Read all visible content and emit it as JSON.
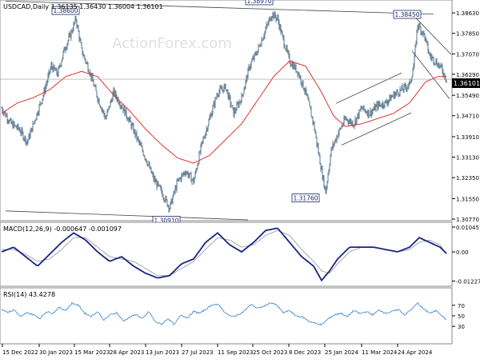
{
  "chart_data": [
    {
      "type": "candlestick",
      "symbol": "USDCAD",
      "timeframe": "Daily",
      "ohlc": [
        "1.36135",
        "1.36430",
        "1.36004",
        "1.36101"
      ],
      "ylim": [
        1.3077,
        1.3906
      ],
      "y_ticks": [
        1.3863,
        1.3785,
        1.3707,
        1.3629,
        1.3549,
        1.3471,
        1.3391,
        1.3313,
        1.3235,
        1.3155,
        1.3077
      ],
      "x_ticks": [
        "15 Dec 2022",
        "30 Jan 2023",
        "15 Mar 2023",
        "28 Apr 2023",
        "13 Jun 2023",
        "27 Jul 2023",
        "11 Sep 2023",
        "25 Oct 2023",
        "8 Dec 2023",
        "25 Jan 2024",
        "11 Mar 2024",
        "24 Apr 2024"
      ],
      "last_price": "1.36101",
      "horizontal_line": 1.36101,
      "annotations": [
        {
          "label": "1.38600",
          "price": 1.386
        },
        {
          "label": "1.38970",
          "price": 1.3897
        },
        {
          "label": "1.38450",
          "price": 1.3845
        },
        {
          "label": "1.31760",
          "price": 1.3176
        },
        {
          "label": "1.30910",
          "price": 1.3091
        }
      ],
      "close_path": [
        [
          0,
          1.35
        ],
        [
          12,
          1.344
        ],
        [
          22,
          1.342
        ],
        [
          32,
          1.337
        ],
        [
          42,
          1.346
        ],
        [
          52,
          1.355
        ],
        [
          62,
          1.366
        ],
        [
          70,
          1.363
        ],
        [
          78,
          1.372
        ],
        [
          86,
          1.378
        ],
        [
          93,
          1.384
        ],
        [
          100,
          1.372
        ],
        [
          110,
          1.364
        ],
        [
          120,
          1.354
        ],
        [
          130,
          1.346
        ],
        [
          140,
          1.356
        ],
        [
          150,
          1.351
        ],
        [
          160,
          1.345
        ],
        [
          170,
          1.338
        ],
        [
          180,
          1.331
        ],
        [
          190,
          1.323
        ],
        [
          200,
          1.318
        ],
        [
          210,
          1.312
        ],
        [
          220,
          1.322
        ],
        [
          230,
          1.326
        ],
        [
          240,
          1.322
        ],
        [
          250,
          1.336
        ],
        [
          260,
          1.346
        ],
        [
          270,
          1.356
        ],
        [
          280,
          1.358
        ],
        [
          290,
          1.348
        ],
        [
          300,
          1.354
        ],
        [
          310,
          1.366
        ],
        [
          320,
          1.372
        ],
        [
          330,
          1.38
        ],
        [
          338,
          1.386
        ],
        [
          345,
          1.384
        ],
        [
          352,
          1.376
        ],
        [
          360,
          1.368
        ],
        [
          370,
          1.364
        ],
        [
          380,
          1.356
        ],
        [
          390,
          1.344
        ],
        [
          400,
          1.326
        ],
        [
          405,
          1.318
        ],
        [
          412,
          1.334
        ],
        [
          420,
          1.34
        ],
        [
          430,
          1.346
        ],
        [
          440,
          1.344
        ],
        [
          450,
          1.35
        ],
        [
          460,
          1.348
        ],
        [
          470,
          1.351
        ],
        [
          480,
          1.352
        ],
        [
          490,
          1.355
        ],
        [
          500,
          1.357
        ],
        [
          510,
          1.359
        ],
        [
          515,
          1.366
        ],
        [
          520,
          1.382
        ],
        [
          528,
          1.378
        ],
        [
          535,
          1.37
        ],
        [
          542,
          1.368
        ],
        [
          550,
          1.365
        ],
        [
          556,
          1.361
        ]
      ],
      "series": [
        {
          "name": "MA",
          "values": [
            [
              0,
              1.348
            ],
            [
              20,
              1.352
            ],
            [
              40,
              1.354
            ],
            [
              60,
              1.357
            ],
            [
              80,
              1.362
            ],
            [
              100,
              1.364
            ],
            [
              120,
              1.362
            ],
            [
              140,
              1.355
            ],
            [
              160,
              1.349
            ],
            [
              180,
              1.342
            ],
            [
              200,
              1.336
            ],
            [
              220,
              1.331
            ],
            [
              240,
              1.329
            ],
            [
              260,
              1.332
            ],
            [
              280,
              1.338
            ],
            [
              300,
              1.344
            ],
            [
              320,
              1.353
            ],
            [
              340,
              1.362
            ],
            [
              360,
              1.368
            ],
            [
              380,
              1.366
            ],
            [
              400,
              1.356
            ],
            [
              415,
              1.347
            ],
            [
              430,
              1.343
            ],
            [
              450,
              1.344
            ],
            [
              470,
              1.346
            ],
            [
              490,
              1.348
            ],
            [
              510,
              1.352
            ],
            [
              530,
              1.36
            ],
            [
              545,
              1.362
            ],
            [
              556,
              1.362
            ]
          ]
        }
      ],
      "trendlines": [
        {
          "role": "upper",
          "points": [
            [
              5,
              1.3908
            ],
            [
              540,
              1.3858
            ]
          ]
        },
        {
          "role": "lower",
          "points": [
            [
              5,
              1.3108
            ],
            [
              308,
              1.3074
            ]
          ]
        },
        {
          "role": "channel-upper",
          "points": [
            [
              418,
              1.3518
            ],
            [
              500,
              1.3634
            ]
          ]
        },
        {
          "role": "channel-lower",
          "points": [
            [
              425,
              1.3359
            ],
            [
              512,
              1.3482
            ]
          ]
        },
        {
          "role": "wedge-upper",
          "points": [
            [
              518,
              1.3843
            ],
            [
              562,
              1.3704
            ]
          ]
        },
        {
          "role": "wedge-lower",
          "points": [
            [
              513,
              1.3718
            ],
            [
              560,
              1.3535
            ]
          ]
        }
      ]
    },
    {
      "type": "line",
      "indicator": "MACD",
      "label": "MACD(12,26,9) -0.000647 -0.001097",
      "y_ticks": [
        "0.010457",
        "0.00",
        "-0.012276"
      ],
      "ylim": [
        -0.0138,
        0.0118
      ],
      "series": [
        {
          "name": "MACD",
          "values": [
            [
              0,
              0.0
            ],
            [
              15,
              0.002
            ],
            [
              30,
              -0.002
            ],
            [
              45,
              -0.006
            ],
            [
              60,
              -0.001
            ],
            [
              75,
              0.004
            ],
            [
              90,
              0.008
            ],
            [
              105,
              0.005
            ],
            [
              120,
              0.0
            ],
            [
              135,
              -0.004
            ],
            [
              150,
              -0.002
            ],
            [
              165,
              -0.006
            ],
            [
              180,
              -0.009
            ],
            [
              195,
              -0.011
            ],
            [
              210,
              -0.01
            ],
            [
              225,
              -0.005
            ],
            [
              240,
              -0.003
            ],
            [
              255,
              0.004
            ],
            [
              270,
              0.008
            ],
            [
              285,
              0.003
            ],
            [
              300,
              0.0
            ],
            [
              315,
              0.004
            ],
            [
              330,
              0.009
            ],
            [
              345,
              0.01
            ],
            [
              360,
              0.004
            ],
            [
              375,
              -0.002
            ],
            [
              390,
              -0.006
            ],
            [
              400,
              -0.012
            ],
            [
              410,
              -0.008
            ],
            [
              420,
              -0.003
            ],
            [
              435,
              0.002
            ],
            [
              450,
              0.002
            ],
            [
              465,
              0.002
            ],
            [
              480,
              0.001
            ],
            [
              495,
              0.0
            ],
            [
              510,
              0.002
            ],
            [
              522,
              0.006
            ],
            [
              535,
              0.004
            ],
            [
              548,
              0.002
            ],
            [
              556,
              -0.0006
            ]
          ]
        },
        {
          "name": "Signal",
          "values": [
            [
              0,
              0.001
            ],
            [
              15,
              0.001
            ],
            [
              30,
              -0.001
            ],
            [
              45,
              -0.004
            ],
            [
              60,
              -0.003
            ],
            [
              75,
              0.001
            ],
            [
              90,
              0.006
            ],
            [
              105,
              0.006
            ],
            [
              120,
              0.002
            ],
            [
              135,
              -0.002
            ],
            [
              150,
              -0.003
            ],
            [
              165,
              -0.004
            ],
            [
              180,
              -0.007
            ],
            [
              195,
              -0.01
            ],
            [
              210,
              -0.01
            ],
            [
              225,
              -0.007
            ],
            [
              240,
              -0.004
            ],
            [
              255,
              0.001
            ],
            [
              270,
              0.006
            ],
            [
              285,
              0.005
            ],
            [
              300,
              0.002
            ],
            [
              315,
              0.003
            ],
            [
              330,
              0.007
            ],
            [
              345,
              0.009
            ],
            [
              360,
              0.007
            ],
            [
              375,
              0.001
            ],
            [
              390,
              -0.004
            ],
            [
              400,
              -0.008
            ],
            [
              410,
              -0.009
            ],
            [
              420,
              -0.005
            ],
            [
              435,
              0.0
            ],
            [
              450,
              0.002
            ],
            [
              465,
              0.002
            ],
            [
              480,
              0.001
            ],
            [
              495,
              0.0
            ],
            [
              510,
              0.001
            ],
            [
              522,
              0.004
            ],
            [
              535,
              0.005
            ],
            [
              548,
              0.003
            ],
            [
              556,
              -0.0011
            ]
          ]
        }
      ]
    },
    {
      "type": "line",
      "indicator": "RSI",
      "label": "RSI(14) 43.4278",
      "y_ticks": [
        "70",
        "50",
        "30"
      ],
      "ylim": [
        0,
        100
      ],
      "values": [
        [
          0,
          63
        ],
        [
          8,
          57
        ],
        [
          16,
          61
        ],
        [
          24,
          48
        ],
        [
          32,
          56
        ],
        [
          40,
          52
        ],
        [
          48,
          45
        ],
        [
          56,
          58
        ],
        [
          64,
          55
        ],
        [
          72,
          66
        ],
        [
          80,
          60
        ],
        [
          88,
          74
        ],
        [
          96,
          70
        ],
        [
          104,
          55
        ],
        [
          112,
          49
        ],
        [
          120,
          58
        ],
        [
          128,
          42
        ],
        [
          136,
          52
        ],
        [
          144,
          56
        ],
        [
          152,
          40
        ],
        [
          160,
          47
        ],
        [
          168,
          53
        ],
        [
          176,
          44
        ],
        [
          184,
          58
        ],
        [
          192,
          39
        ],
        [
          200,
          34
        ],
        [
          208,
          45
        ],
        [
          216,
          33
        ],
        [
          224,
          52
        ],
        [
          232,
          46
        ],
        [
          240,
          58
        ],
        [
          248,
          55
        ],
        [
          256,
          63
        ],
        [
          264,
          72
        ],
        [
          272,
          70
        ],
        [
          280,
          55
        ],
        [
          288,
          48
        ],
        [
          296,
          52
        ],
        [
          304,
          60
        ],
        [
          312,
          72
        ],
        [
          320,
          64
        ],
        [
          328,
          68
        ],
        [
          336,
          75
        ],
        [
          344,
          70
        ],
        [
          352,
          56
        ],
        [
          360,
          60
        ],
        [
          368,
          50
        ],
        [
          376,
          48
        ],
        [
          384,
          40
        ],
        [
          392,
          36
        ],
        [
          400,
          33
        ],
        [
          408,
          44
        ],
        [
          416,
          52
        ],
        [
          424,
          55
        ],
        [
          432,
          48
        ],
        [
          440,
          60
        ],
        [
          448,
          54
        ],
        [
          456,
          58
        ],
        [
          464,
          52
        ],
        [
          472,
          61
        ],
        [
          480,
          55
        ],
        [
          488,
          58
        ],
        [
          496,
          62
        ],
        [
          504,
          52
        ],
        [
          512,
          62
        ],
        [
          520,
          74
        ],
        [
          528,
          62
        ],
        [
          536,
          55
        ],
        [
          544,
          60
        ],
        [
          552,
          48
        ],
        [
          556,
          43
        ]
      ]
    }
  ],
  "watermark": "ActionForex.com"
}
